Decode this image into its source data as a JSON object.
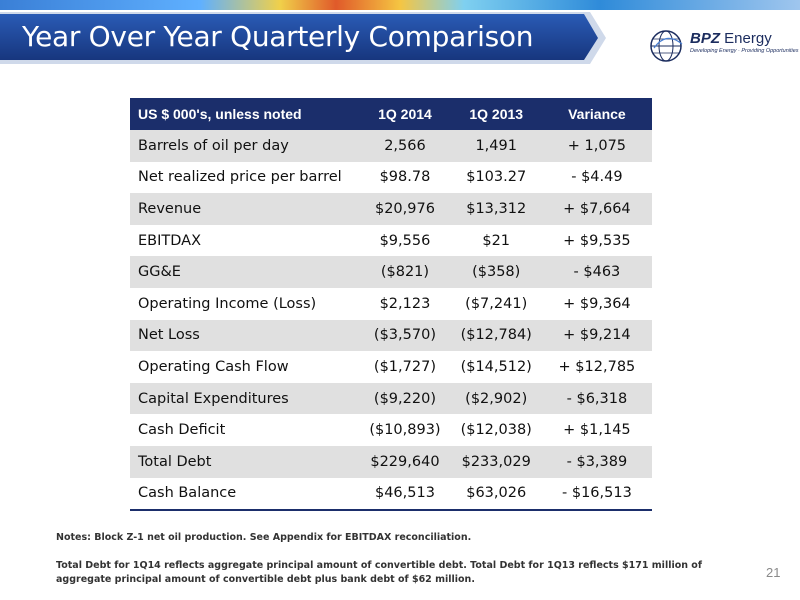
{
  "header": {
    "title": "Year Over Year Quarterly Comparison"
  },
  "logo": {
    "brand": "BPZ",
    "brand_suffix": "Energy",
    "tagline": "Developing Energy · Providing Opportunities",
    "icon": "globe-icon"
  },
  "table": {
    "headers": [
      "US $ 000's, unless noted",
      "1Q 2014",
      "1Q 2013",
      "Variance"
    ],
    "rows": [
      [
        "Barrels of oil per day",
        "2,566",
        "1,491",
        "+ 1,075"
      ],
      [
        "Net realized price per barrel",
        "$98.78",
        "$103.27",
        "- $4.49"
      ],
      [
        "Revenue",
        "$20,976",
        "$13,312",
        "+ $7,664"
      ],
      [
        "EBITDAX",
        "$9,556",
        "$21",
        "+ $9,535"
      ],
      [
        "GG&E",
        "($821)",
        "($358)",
        "- $463"
      ],
      [
        "Operating Income (Loss)",
        "$2,123",
        "($7,241)",
        "+ $9,364"
      ],
      [
        "Net Loss",
        "($3,570)",
        "($12,784)",
        "+ $9,214"
      ],
      [
        "Operating Cash Flow",
        "($1,727)",
        "($14,512)",
        "+ $12,785"
      ],
      [
        "Capital Expenditures",
        "($9,220)",
        "($2,902)",
        "- $6,318"
      ],
      [
        "Cash Deficit",
        "($10,893)",
        "($12,038)",
        "+ $1,145"
      ],
      [
        "Total Debt",
        "$229,640",
        "$233,029",
        "- $3,389"
      ],
      [
        "Cash Balance",
        "$46,513",
        "$63,026",
        "- $16,513"
      ]
    ]
  },
  "notes": "Notes:  Block Z-1 net oil production.  See Appendix for EBITDAX reconciliation.",
  "footnote": "Total Debt for 1Q14 reflects aggregate principal amount of convertible debt.  Total Debt for 1Q13 reflects $171 million of aggregate principal amount of convertible debt plus bank debt of $62 million.",
  "page_number": "21",
  "colors": {
    "banner": "#1b3f8f",
    "table_header": "#1b2e6b",
    "row_shade": "#e0e0e0"
  }
}
